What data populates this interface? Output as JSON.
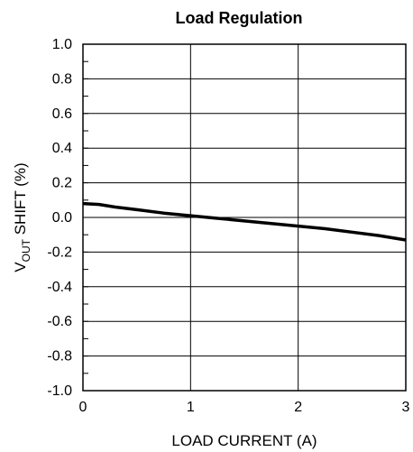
{
  "chart_data": {
    "type": "line",
    "title": "Load Regulation",
    "xlabel": "LOAD CURRENT (A)",
    "ylabel_main": "V",
    "ylabel_sub": "OUT",
    "ylabel_rest": " SHIFT (%)",
    "xlim": [
      0,
      3
    ],
    "ylim": [
      -1.0,
      1.0
    ],
    "x_ticks": [
      0,
      1,
      2,
      3
    ],
    "x_tick_labels": [
      "0",
      "1",
      "2",
      "3"
    ],
    "y_ticks": [
      1.0,
      0.8,
      0.6,
      0.4,
      0.2,
      0.0,
      -0.2,
      -0.4,
      -0.6,
      -0.8,
      -1.0
    ],
    "y_tick_labels": [
      "1.0",
      "0.8",
      "0.6",
      "0.4",
      "0.2",
      "0.0",
      "-0.2",
      "-0.4",
      "-0.6",
      "-0.8",
      "-1.0"
    ],
    "grid": true,
    "line_color": "#000000",
    "series": [
      {
        "x": [
          0,
          0.15,
          0.3,
          0.5,
          0.75,
          1.0,
          1.25,
          1.5,
          1.75,
          2.0,
          2.25,
          2.5,
          2.75,
          3.0
        ],
        "values": [
          0.08,
          0.075,
          0.06,
          0.045,
          0.025,
          0.01,
          -0.005,
          -0.02,
          -0.035,
          -0.05,
          -0.065,
          -0.085,
          -0.105,
          -0.13
        ]
      }
    ]
  }
}
